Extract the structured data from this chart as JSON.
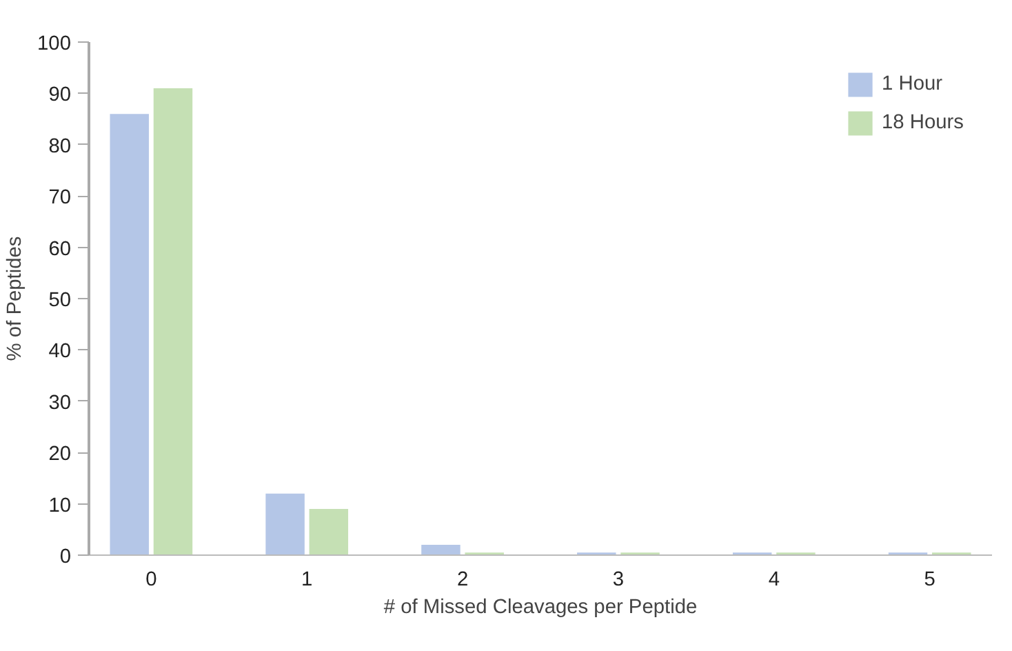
{
  "chart_data": {
    "type": "bar",
    "categories": [
      "0",
      "1",
      "2",
      "3",
      "4",
      "5"
    ],
    "series": [
      {
        "name": "1 Hour",
        "color": "#b4c6e7",
        "values": [
          86,
          12,
          2,
          0.5,
          0.5,
          0.5
        ]
      },
      {
        "name": "18 Hours",
        "color": "#c5e0b4",
        "values": [
          91,
          9,
          0.5,
          0.5,
          0.5,
          0.5
        ]
      }
    ],
    "xlabel": "# of Missed Cleavages per Peptide",
    "ylabel": "% of Peptides",
    "ylim": [
      0,
      100
    ],
    "yticks": [
      0,
      10,
      20,
      30,
      40,
      50,
      60,
      70,
      80,
      90,
      100
    ],
    "grid": false,
    "legend": "top right"
  }
}
